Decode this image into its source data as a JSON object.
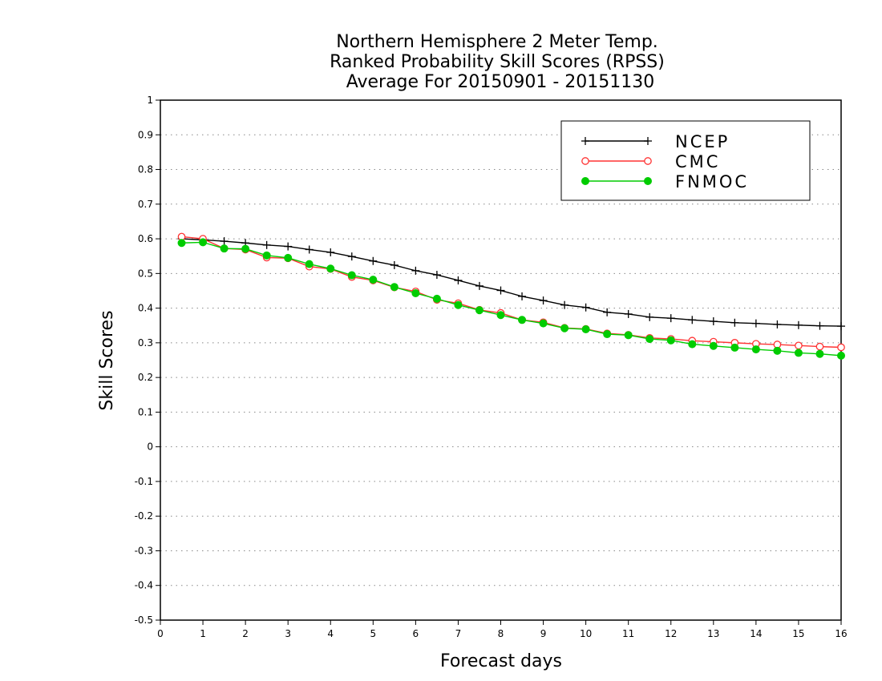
{
  "chart_data": {
    "type": "line",
    "title": [
      "Northern Hemisphere 2 Meter Temp.",
      "Ranked Probability Skill Scores (RPSS)",
      "Average For 20150901 - 20151130"
    ],
    "xlabel": "Forecast days",
    "ylabel": "Skill Scores",
    "xlim": [
      0,
      16
    ],
    "ylim": [
      -0.5,
      1
    ],
    "x_ticks": [
      0,
      1,
      2,
      3,
      4,
      5,
      6,
      7,
      8,
      9,
      10,
      11,
      12,
      13,
      14,
      15,
      16
    ],
    "y_ticks": [
      -0.5,
      -0.4,
      -0.3,
      -0.2,
      -0.1,
      0,
      0.1,
      0.2,
      0.3,
      0.4,
      0.5,
      0.6,
      0.7,
      0.8,
      0.9,
      1
    ],
    "y_tick_labels": [
      "-0.5",
      "-0.4",
      "-0.3",
      "-0.2",
      "-0.1",
      "0",
      "0.1",
      "0.2",
      "0.3",
      "0.4",
      "0.5",
      "0.6",
      "0.7",
      "0.8",
      "0.9",
      "1"
    ],
    "grid": "horizontal-dotted",
    "legend_position": "top-right",
    "x": [
      0.5,
      1,
      1.5,
      2,
      2.5,
      3,
      3.5,
      4,
      4.5,
      5,
      5.5,
      6,
      6.5,
      7,
      7.5,
      8,
      8.5,
      9,
      9.5,
      10,
      10.5,
      11,
      11.5,
      12,
      12.5,
      13,
      13.5,
      14,
      14.5,
      15,
      15.5,
      16
    ],
    "series": [
      {
        "name": "NCEP",
        "color": "#000000",
        "marker": "plus",
        "values": [
          0.6,
          0.597,
          0.593,
          0.588,
          0.582,
          0.578,
          0.569,
          0.561,
          0.549,
          0.536,
          0.524,
          0.508,
          0.496,
          0.48,
          0.464,
          0.451,
          0.434,
          0.422,
          0.409,
          0.402,
          0.388,
          0.383,
          0.374,
          0.371,
          0.366,
          0.362,
          0.358,
          0.356,
          0.353,
          0.351,
          0.349,
          0.348
        ]
      },
      {
        "name": "CMC",
        "color": "#ff3333",
        "marker": "open-circle",
        "values": [
          0.606,
          0.6,
          0.572,
          0.569,
          0.546,
          0.544,
          0.52,
          0.513,
          0.49,
          0.48,
          0.46,
          0.448,
          0.424,
          0.414,
          0.395,
          0.386,
          0.366,
          0.359,
          0.343,
          0.34,
          0.327,
          0.323,
          0.314,
          0.311,
          0.306,
          0.303,
          0.3,
          0.297,
          0.295,
          0.292,
          0.289,
          0.287
        ]
      },
      {
        "name": "FNMOC",
        "color": "#00cc00",
        "marker": "filled-circle",
        "values": [
          0.588,
          0.59,
          0.572,
          0.571,
          0.552,
          0.545,
          0.527,
          0.514,
          0.495,
          0.482,
          0.461,
          0.443,
          0.427,
          0.409,
          0.394,
          0.38,
          0.366,
          0.356,
          0.342,
          0.339,
          0.325,
          0.322,
          0.311,
          0.307,
          0.296,
          0.291,
          0.286,
          0.281,
          0.277,
          0.271,
          0.268,
          0.263
        ]
      }
    ]
  }
}
